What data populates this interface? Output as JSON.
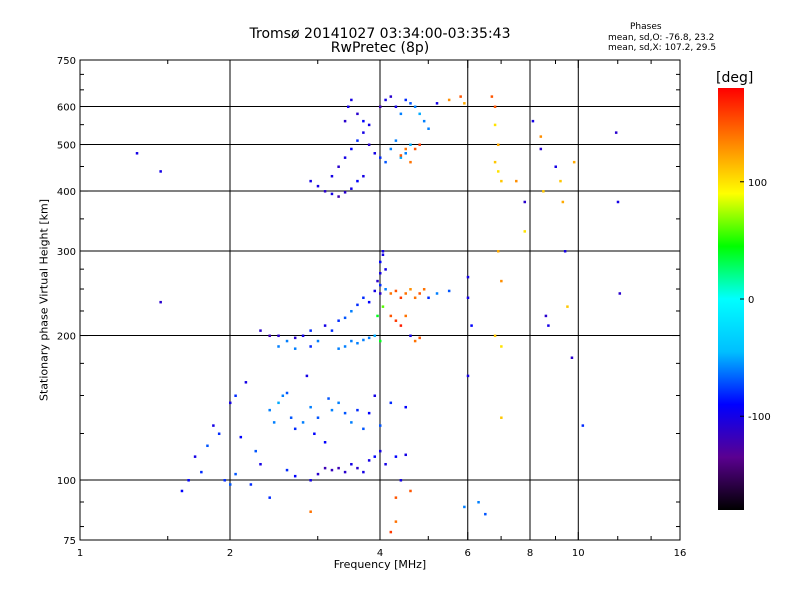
{
  "header": {
    "title_line1": "Tromsø 20141027 03:34:00-03:35:43",
    "title_line2": "RwPretec (8p)",
    "phase_title": "Phases",
    "phase_o": "mean, sd,O: -76.8, 23.2",
    "phase_x": "mean, sd,X: 107.2, 29.5"
  },
  "chart_data": {
    "type": "scatter",
    "xlabel": "Frequency [MHz]",
    "ylabel": "Stationary phase Virtual Height [km]",
    "x_scale": "log",
    "y_scale": "log",
    "xlim": [
      1,
      16
    ],
    "ylim": [
      75,
      750
    ],
    "x_ticks": [
      1,
      2,
      4,
      6,
      8,
      10,
      16
    ],
    "y_ticks": [
      75,
      100,
      200,
      300,
      400,
      500,
      600,
      750
    ],
    "x_grid": [
      2,
      4,
      6,
      8,
      10
    ],
    "y_grid": [
      100,
      200,
      300,
      400,
      500,
      600
    ],
    "colorbar": {
      "unit": "[deg]",
      "range": [
        -180,
        180
      ],
      "ticks": [
        100,
        0,
        -100
      ],
      "colors": [
        "#000000",
        "#5a0090",
        "#0000ff",
        "#00bfff",
        "#00ffff",
        "#00ff00",
        "#ffff00",
        "#ff8000",
        "#ff0000"
      ]
    },
    "points": [
      [
        1.3,
        480,
        -100
      ],
      [
        1.45,
        440,
        -100
      ],
      [
        1.45,
        235,
        -110
      ],
      [
        1.6,
        95,
        -90
      ],
      [
        1.65,
        100,
        -90
      ],
      [
        1.7,
        112,
        -100
      ],
      [
        1.75,
        104,
        -80
      ],
      [
        1.8,
        118,
        -70
      ],
      [
        1.85,
        130,
        -100
      ],
      [
        1.9,
        125,
        -80
      ],
      [
        1.95,
        100,
        -80
      ],
      [
        2.0,
        98,
        -70
      ],
      [
        2.05,
        103,
        -70
      ],
      [
        2.1,
        123,
        -90
      ],
      [
        2.2,
        98,
        -80
      ],
      [
        2.0,
        145,
        -100
      ],
      [
        2.05,
        150,
        -80
      ],
      [
        2.15,
        160,
        -100
      ],
      [
        2.25,
        115,
        -70
      ],
      [
        2.3,
        108,
        -100
      ],
      [
        2.4,
        140,
        -60
      ],
      [
        2.45,
        132,
        -60
      ],
      [
        2.5,
        145,
        -50
      ],
      [
        2.55,
        150,
        -60
      ],
      [
        2.6,
        152,
        -70
      ],
      [
        2.65,
        135,
        -70
      ],
      [
        2.7,
        128,
        -80
      ],
      [
        2.8,
        132,
        -60
      ],
      [
        2.85,
        165,
        -100
      ],
      [
        2.9,
        142,
        -60
      ],
      [
        2.95,
        125,
        -90
      ],
      [
        3.0,
        135,
        -70
      ],
      [
        3.1,
        120,
        -90
      ],
      [
        3.15,
        148,
        -70
      ],
      [
        3.2,
        140,
        -60
      ],
      [
        3.3,
        145,
        -60
      ],
      [
        3.4,
        138,
        -70
      ],
      [
        3.5,
        132,
        -60
      ],
      [
        3.6,
        140,
        -80
      ],
      [
        3.7,
        128,
        -70
      ],
      [
        3.8,
        138,
        -90
      ],
      [
        3.9,
        150,
        -100
      ],
      [
        4.0,
        130,
        -70
      ],
      [
        4.2,
        145,
        -80
      ],
      [
        4.5,
        142,
        -90
      ],
      [
        2.6,
        105,
        -80
      ],
      [
        2.7,
        102,
        -90
      ],
      [
        2.9,
        100,
        -100
      ],
      [
        3.0,
        103,
        -110
      ],
      [
        3.1,
        106,
        -120
      ],
      [
        3.2,
        105,
        -115
      ],
      [
        3.3,
        106,
        -120
      ],
      [
        3.4,
        104,
        -110
      ],
      [
        3.5,
        108,
        -100
      ],
      [
        3.6,
        106,
        -110
      ],
      [
        3.7,
        104,
        -100
      ],
      [
        3.8,
        110,
        -100
      ],
      [
        3.9,
        112,
        -90
      ],
      [
        4.0,
        115,
        -100
      ],
      [
        4.1,
        108,
        -100
      ],
      [
        4.3,
        112,
        -90
      ],
      [
        4.5,
        113,
        -100
      ],
      [
        2.4,
        92,
        -80
      ],
      [
        2.9,
        86,
        140
      ],
      [
        4.4,
        100,
        -100
      ],
      [
        4.6,
        95,
        150
      ],
      [
        4.3,
        92,
        150
      ],
      [
        4.2,
        78,
        160
      ],
      [
        4.3,
        82,
        140
      ],
      [
        2.3,
        205,
        -110
      ],
      [
        2.4,
        200,
        -120
      ],
      [
        2.5,
        200,
        -110
      ],
      [
        2.6,
        195,
        -60
      ],
      [
        2.7,
        198,
        -110
      ],
      [
        2.8,
        200,
        -100
      ],
      [
        2.9,
        205,
        -80
      ],
      [
        2.5,
        190,
        -60
      ],
      [
        2.7,
        188,
        -60
      ],
      [
        2.9,
        190,
        -80
      ],
      [
        3.0,
        195,
        -60
      ],
      [
        3.1,
        210,
        -100
      ],
      [
        3.2,
        205,
        -80
      ],
      [
        3.3,
        188,
        -60
      ],
      [
        3.4,
        190,
        -60
      ],
      [
        3.5,
        195,
        -60
      ],
      [
        3.6,
        193,
        -60
      ],
      [
        3.7,
        196,
        -60
      ],
      [
        3.8,
        198,
        -60
      ],
      [
        3.9,
        200,
        -50
      ],
      [
        4.0,
        195,
        40
      ],
      [
        3.95,
        220,
        40
      ],
      [
        4.05,
        230,
        60
      ],
      [
        3.3,
        215,
        -80
      ],
      [
        3.4,
        218,
        -70
      ],
      [
        3.5,
        225,
        -60
      ],
      [
        3.6,
        232,
        -80
      ],
      [
        3.7,
        240,
        -80
      ],
      [
        3.8,
        235,
        -90
      ],
      [
        3.9,
        248,
        -100
      ],
      [
        4.0,
        245,
        -110
      ],
      [
        4.1,
        250,
        -60
      ],
      [
        4.2,
        245,
        140
      ],
      [
        4.3,
        248,
        150
      ],
      [
        4.4,
        240,
        160
      ],
      [
        4.5,
        245,
        140
      ],
      [
        4.6,
        250,
        130
      ],
      [
        4.7,
        240,
        140
      ],
      [
        4.8,
        245,
        150
      ],
      [
        4.9,
        250,
        140
      ],
      [
        5.0,
        240,
        -80
      ],
      [
        5.2,
        245,
        -60
      ],
      [
        5.5,
        248,
        -70
      ],
      [
        4.2,
        220,
        150
      ],
      [
        4.3,
        215,
        160
      ],
      [
        4.4,
        210,
        170
      ],
      [
        4.5,
        220,
        140
      ],
      [
        4.6,
        200,
        -100
      ],
      [
        4.7,
        195,
        140
      ],
      [
        4.8,
        198,
        150
      ],
      [
        4.0,
        270,
        -100
      ],
      [
        4.0,
        285,
        -90
      ],
      [
        4.05,
        295,
        -100
      ],
      [
        3.95,
        260,
        -110
      ],
      [
        4.05,
        300,
        -100
      ],
      [
        4.1,
        275,
        -100
      ],
      [
        4.0,
        255,
        -80
      ],
      [
        6.0,
        265,
        -100
      ],
      [
        6.0,
        240,
        -100
      ],
      [
        6.1,
        210,
        -90
      ],
      [
        6.0,
        165,
        -100
      ],
      [
        6.3,
        90,
        -60
      ],
      [
        6.5,
        85,
        -70
      ],
      [
        5.9,
        88,
        -60
      ],
      [
        2.9,
        420,
        -100
      ],
      [
        3.0,
        410,
        -100
      ],
      [
        3.1,
        400,
        -110
      ],
      [
        3.2,
        395,
        -100
      ],
      [
        3.3,
        390,
        -120
      ],
      [
        3.4,
        398,
        -110
      ],
      [
        3.5,
        405,
        -100
      ],
      [
        3.6,
        420,
        -90
      ],
      [
        3.7,
        430,
        -100
      ],
      [
        3.2,
        430,
        -100
      ],
      [
        3.3,
        450,
        -110
      ],
      [
        3.4,
        470,
        -100
      ],
      [
        3.5,
        490,
        -90
      ],
      [
        3.6,
        510,
        -80
      ],
      [
        3.7,
        530,
        -100
      ],
      [
        3.8,
        550,
        -100
      ],
      [
        3.4,
        560,
        -110
      ],
      [
        3.45,
        600,
        -100
      ],
      [
        3.5,
        620,
        -100
      ],
      [
        3.6,
        580,
        -110
      ],
      [
        3.7,
        560,
        -90
      ],
      [
        3.8,
        500,
        -110
      ],
      [
        3.9,
        480,
        -100
      ],
      [
        4.0,
        470,
        -80
      ],
      [
        4.1,
        460,
        -70
      ],
      [
        4.2,
        490,
        -60
      ],
      [
        4.3,
        510,
        -60
      ],
      [
        4.4,
        470,
        -50
      ],
      [
        4.5,
        480,
        -60
      ],
      [
        4.6,
        500,
        -50
      ],
      [
        4.7,
        490,
        150
      ],
      [
        4.8,
        500,
        160
      ],
      [
        4.5,
        490,
        140
      ],
      [
        4.4,
        475,
        150
      ],
      [
        4.6,
        460,
        140
      ],
      [
        4.0,
        600,
        -120
      ],
      [
        4.1,
        620,
        -100
      ],
      [
        4.2,
        630,
        -110
      ],
      [
        4.3,
        600,
        -100
      ],
      [
        4.4,
        580,
        -60
      ],
      [
        4.5,
        620,
        -80
      ],
      [
        4.6,
        610,
        -70
      ],
      [
        4.7,
        600,
        -60
      ],
      [
        4.8,
        580,
        -50
      ],
      [
        4.9,
        560,
        -60
      ],
      [
        5.0,
        540,
        -60
      ],
      [
        5.2,
        610,
        -100
      ],
      [
        5.5,
        620,
        130
      ],
      [
        5.8,
        630,
        150
      ],
      [
        5.9,
        610,
        120
      ],
      [
        6.7,
        630,
        150
      ],
      [
        6.8,
        600,
        150
      ],
      [
        6.8,
        550,
        100
      ],
      [
        6.9,
        500,
        120
      ],
      [
        6.8,
        460,
        110
      ],
      [
        6.9,
        440,
        100
      ],
      [
        7.0,
        420,
        110
      ],
      [
        6.9,
        300,
        120
      ],
      [
        7.0,
        260,
        130
      ],
      [
        6.8,
        200,
        110
      ],
      [
        7.0,
        190,
        100
      ],
      [
        7.0,
        135,
        110
      ],
      [
        7.5,
        420,
        130
      ],
      [
        7.8,
        380,
        -110
      ],
      [
        7.8,
        330,
        100
      ],
      [
        8.1,
        560,
        -100
      ],
      [
        8.4,
        520,
        130
      ],
      [
        8.4,
        490,
        -110
      ],
      [
        8.5,
        400,
        110
      ],
      [
        8.6,
        220,
        -110
      ],
      [
        8.7,
        210,
        -100
      ],
      [
        9.0,
        450,
        -100
      ],
      [
        9.2,
        420,
        110
      ],
      [
        9.3,
        380,
        120
      ],
      [
        9.4,
        300,
        -100
      ],
      [
        9.5,
        230,
        110
      ],
      [
        9.7,
        180,
        -110
      ],
      [
        9.8,
        460,
        120
      ],
      [
        10.2,
        130,
        -80
      ],
      [
        11.9,
        530,
        -110
      ],
      [
        12.0,
        380,
        -100
      ],
      [
        12.1,
        245,
        -110
      ]
    ]
  }
}
